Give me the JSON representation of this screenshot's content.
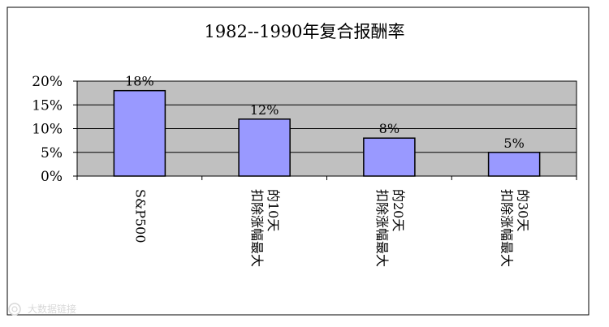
{
  "chart_data": {
    "type": "bar",
    "title": "1982--1990年复合报酬率",
    "categories": [
      [
        "S&P500"
      ],
      [
        "扣除涨幅最大",
        "的10天"
      ],
      [
        "扣除涨幅最大",
        "的20天"
      ],
      [
        "扣除涨幅最大",
        "的30天"
      ]
    ],
    "values": [
      18,
      12,
      8,
      5
    ],
    "data_labels": [
      "18%",
      "12%",
      "8%",
      "5%"
    ],
    "ylim": [
      0,
      20
    ],
    "yticks": [
      0,
      5,
      10,
      15,
      20
    ],
    "ytick_labels": [
      "0%",
      "5%",
      "10%",
      "15%",
      "20%"
    ],
    "grid": true,
    "legend": "none",
    "colors": {
      "bar": "#9999ff",
      "plot_background": "#c0c0c0",
      "frame": "#000000"
    }
  },
  "watermark": {
    "text": "大数据链接",
    "icon": "camera-logo-icon"
  }
}
